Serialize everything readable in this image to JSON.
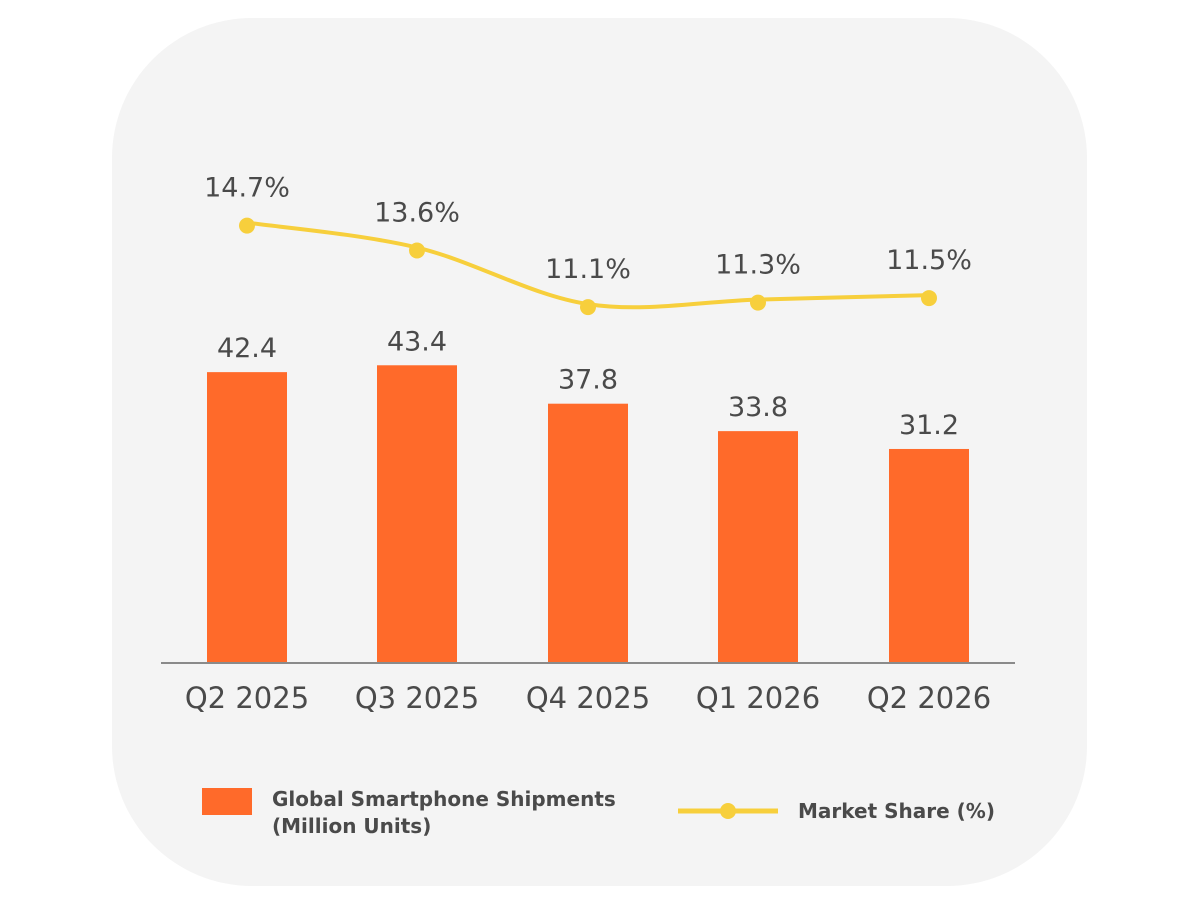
{
  "chart_data": {
    "type": "bar",
    "categories": [
      "Q2 2025",
      "Q3 2025",
      "Q4 2025",
      "Q1 2026",
      "Q2 2026"
    ],
    "series": [
      {
        "name": "Global Smartphone Shipments\n (Million Units)",
        "kind": "bar",
        "values": [
          42.4,
          43.4,
          37.8,
          33.8,
          31.2
        ],
        "labels": [
          "42.4",
          "43.4",
          "37.8",
          "33.8",
          "31.2"
        ],
        "color": "#ff6a2a"
      },
      {
        "name": "Market Share (%)",
        "kind": "line",
        "values": [
          14.7,
          13.6,
          11.1,
          11.3,
          11.5
        ],
        "labels": [
          "14.7%",
          "13.6%",
          "11.1%",
          "11.3%",
          "11.5%"
        ],
        "color": "#f7cf3c"
      }
    ],
    "title": "",
    "xlabel": "",
    "ylabel": "",
    "grid": false,
    "legend_position": "bottom",
    "colors": {
      "background_card": "#f4f4f4",
      "axis": "#8a8a8a",
      "text": "#4a4a4a"
    }
  }
}
